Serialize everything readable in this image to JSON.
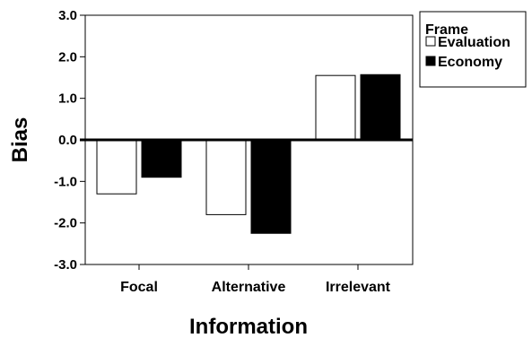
{
  "chart_data": {
    "type": "bar",
    "title": "",
    "xlabel": "Information",
    "ylabel": "Bias",
    "ylim": [
      -3.0,
      3.0
    ],
    "yticks": [
      "3.0",
      "2.0",
      "1.0",
      "0.0",
      "-1.0",
      "-2.0",
      "-3.0"
    ],
    "ytick_values": [
      3.0,
      2.0,
      1.0,
      0.0,
      -1.0,
      -2.0,
      -3.0
    ],
    "categories": [
      "Focal",
      "Alternative",
      "Irrelevant"
    ],
    "legend": {
      "title": "Frame",
      "position": "right"
    },
    "series": [
      {
        "name": "Evaluation",
        "color": "#ffffff",
        "values": [
          -1.3,
          -1.8,
          1.55
        ]
      },
      {
        "name": "Economy",
        "color": "#000000",
        "values": [
          -0.9,
          -2.25,
          1.57
        ]
      }
    ],
    "grid": false
  }
}
